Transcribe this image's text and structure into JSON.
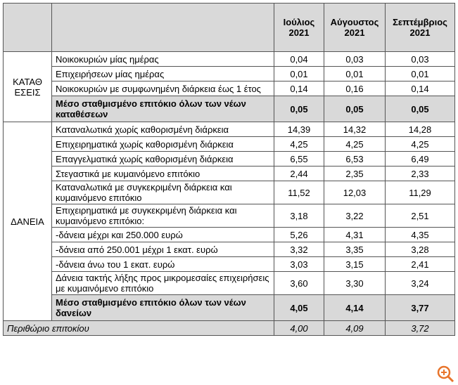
{
  "table": {
    "header": [
      {
        "month": "Ιούλιος",
        "year": "2021"
      },
      {
        "month": "Αύγουστος",
        "year": "2021"
      },
      {
        "month": "Σεπτέμβριος",
        "year": "2021"
      }
    ],
    "groups": [
      {
        "label": "ΚΑΤΑΘΕΣΕΙΣ",
        "rows": [
          {
            "label": "Νοικοκυριών μίας ημέρας",
            "values": [
              "0,04",
              "0,03",
              "0,03"
            ]
          },
          {
            "label": "Επιχειρήσεων μίας ημέρας",
            "values": [
              "0,01",
              "0,01",
              "0,01"
            ]
          },
          {
            "label": "Νοικοκυριών με συμφωνημένη διάρκεια έως 1 έτος",
            "values": [
              "0,14",
              "0,16",
              "0,14"
            ]
          },
          {
            "label": "Μέσο σταθμισμένο επιτόκιο όλων των νέων καταθέσεων",
            "values": [
              "0,05",
              "0,05",
              "0,05"
            ],
            "bold": true
          }
        ]
      },
      {
        "label": "ΔΑΝΕΙΑ",
        "rows": [
          {
            "label": "Καταναλωτικά χωρίς καθορισμένη διάρκεια",
            "values": [
              "14,39",
              "14,32",
              "14,28"
            ]
          },
          {
            "label": "Επιχειρηματικά χωρίς καθορισμένη διάρκεια",
            "values": [
              "4,25",
              "4,25",
              "4,25"
            ]
          },
          {
            "label": "Επαγγελματικά χωρίς καθορισμένη διάρκεια",
            "values": [
              "6,55",
              "6,53",
              "6,49"
            ]
          },
          {
            "label": "Στεγαστικά με κυμαινόμενο επιτόκιο",
            "values": [
              "2,44",
              "2,35",
              "2,33"
            ]
          },
          {
            "label": "Καταναλωτικά με συγκεκριμένη διάρκεια και κυμαινόμενο επιτόκιο",
            "values": [
              "11,52",
              "12,03",
              "11,29"
            ]
          },
          {
            "label": "Επιχειρηματικά με συγκεκριμένη διάρκεια και κυμαινόμενο επιτόκιο:",
            "values": [
              "3,18",
              "3,22",
              "2,51"
            ]
          },
          {
            "label": "-δάνεια μέχρι και 250.000 ευρώ",
            "values": [
              "5,26",
              "4,31",
              "4,35"
            ]
          },
          {
            "label": "-δάνεια από 250.001 μέχρι 1 εκατ. ευρώ",
            "values": [
              "3,32",
              "3,35",
              "3,28"
            ]
          },
          {
            "label": "-δάνεια άνω του 1 εκατ. ευρώ",
            "values": [
              "3,03",
              "3,15",
              "2,41"
            ]
          },
          {
            "label": "Δάνεια τακτής λήξης προς μικρομεσαίες επιχειρήσεις με κυμαινόμενο επιτόκιο",
            "values": [
              "3,60",
              "3,30",
              "3,24"
            ]
          },
          {
            "label": "Μέσο σταθμισμένο επιτόκιο όλων των νέων δανείων",
            "values": [
              "4,05",
              "4,14",
              "3,77"
            ],
            "bold": true
          }
        ]
      }
    ],
    "footer": {
      "label": "Περιθώριο επιτοκίου",
      "values": [
        "4,00",
        "4,09",
        "3,72"
      ]
    }
  }
}
